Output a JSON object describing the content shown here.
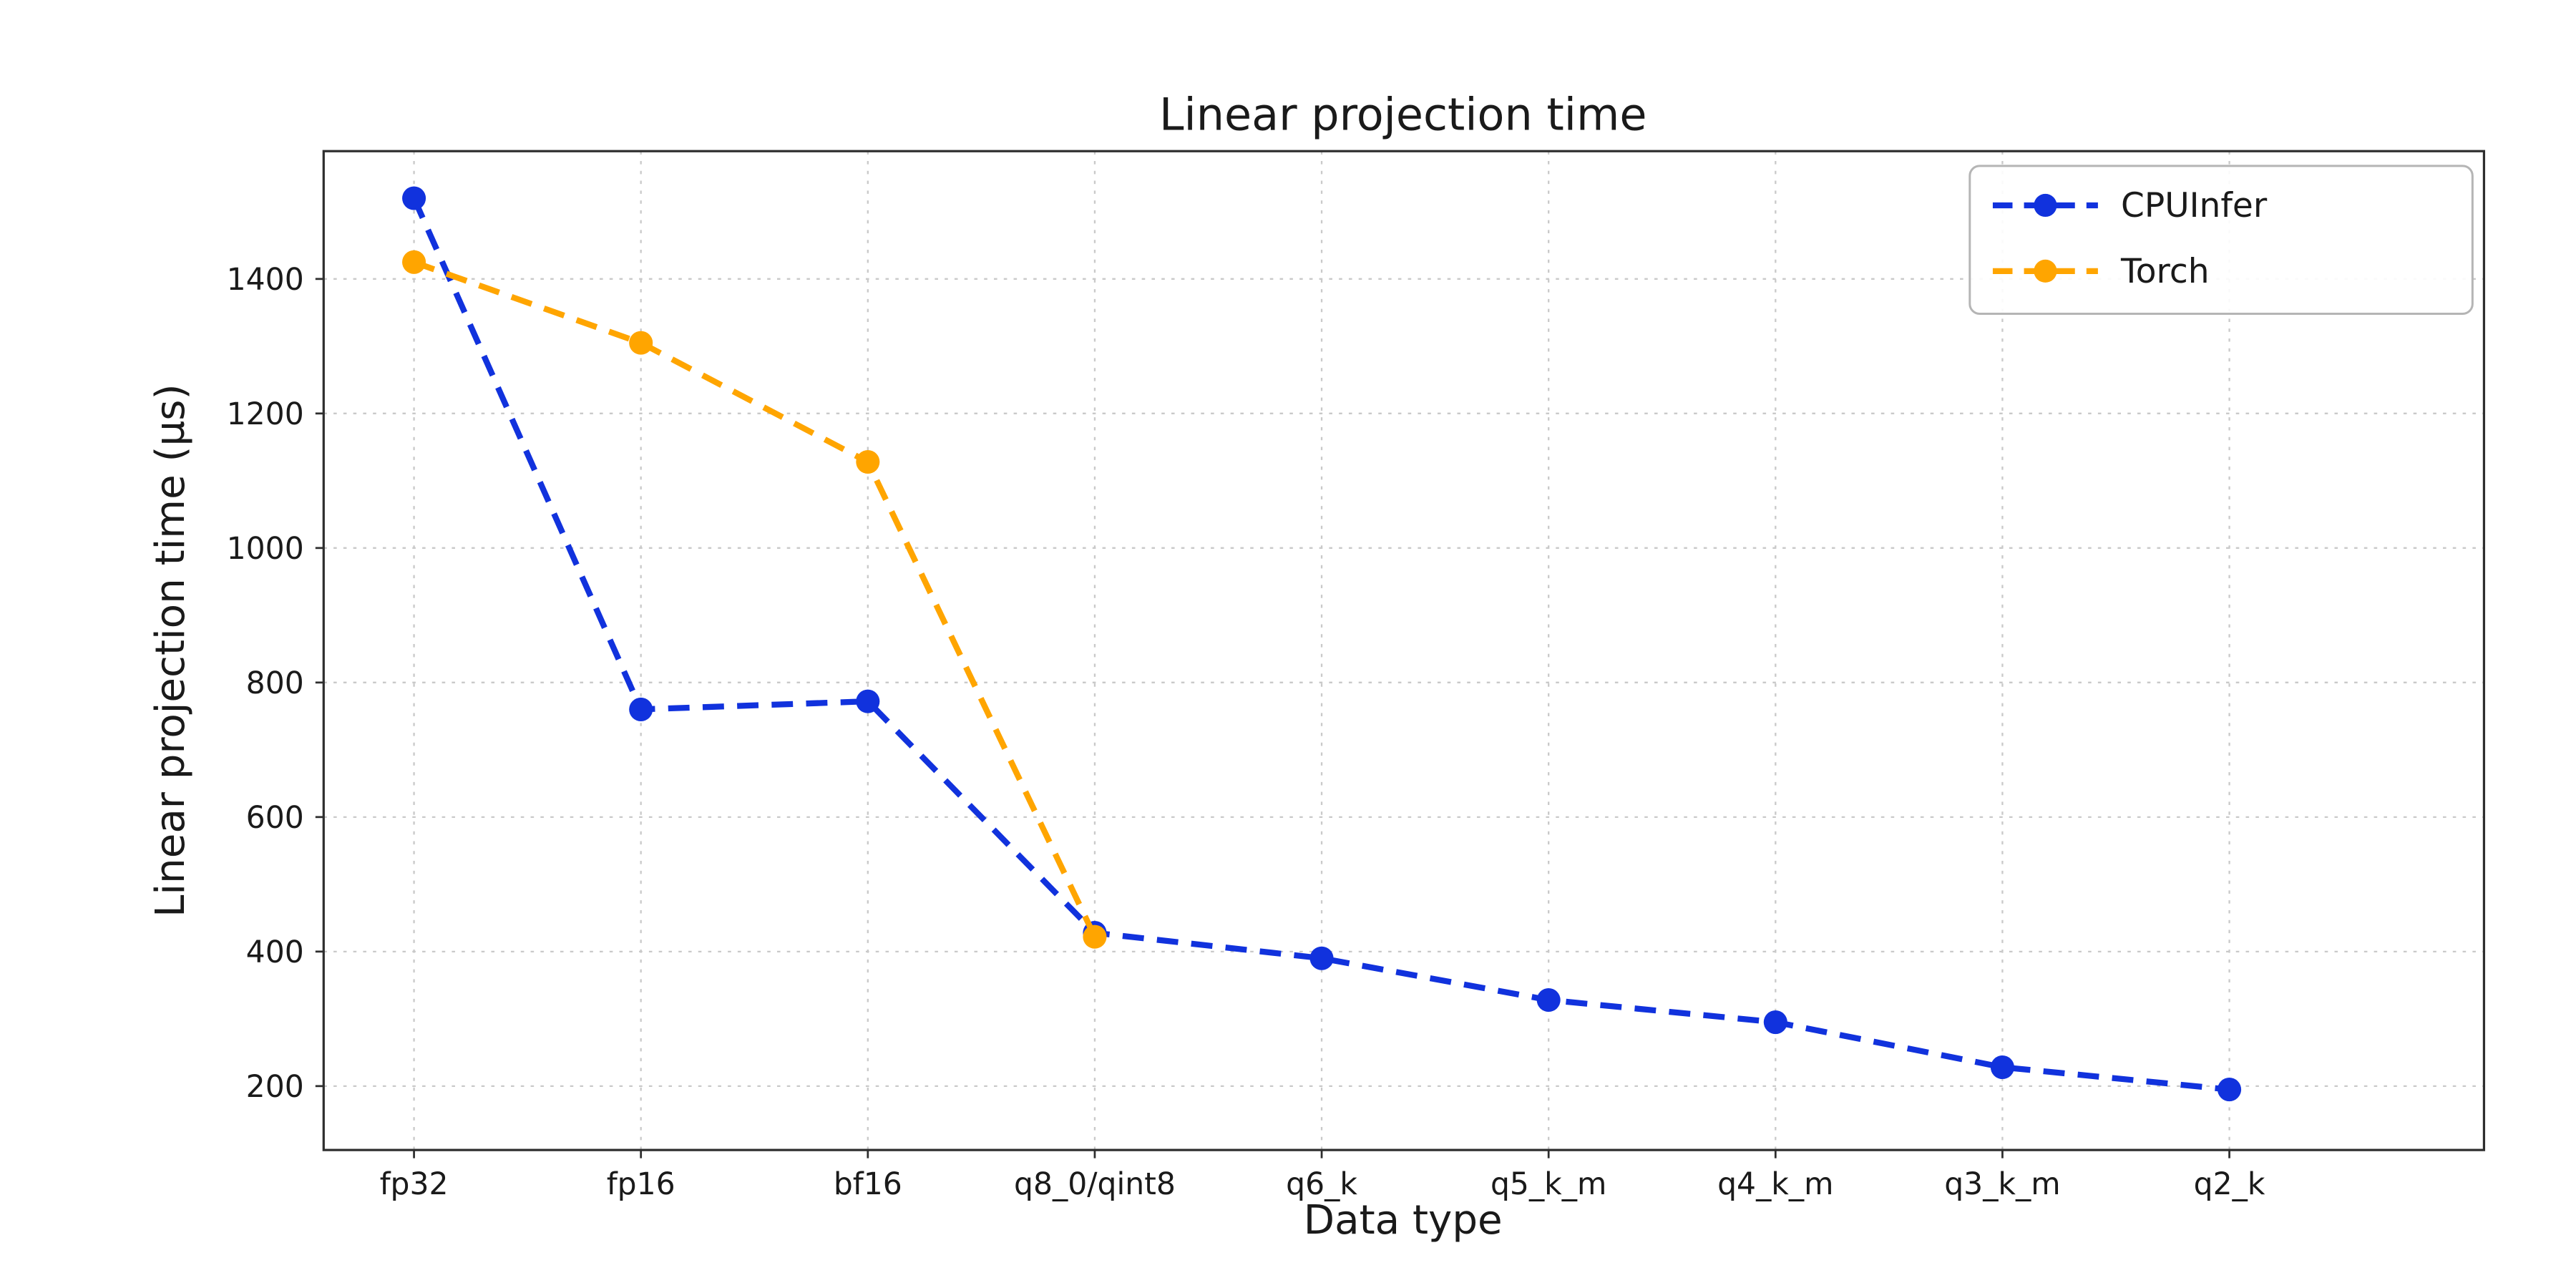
{
  "figure": {
    "background": "#ffffff"
  },
  "chart_data": {
    "type": "line",
    "title": "Linear projection time",
    "xlabel": "Data type",
    "ylabel": "Linear projection time (µs)",
    "categories": [
      "fp32",
      "fp16",
      "bf16",
      "q8_0/qint8",
      "q6_k",
      "q5_k_m",
      "q4_k_m",
      "q3_k_m",
      "q2_k"
    ],
    "series": [
      {
        "name": "CPUInfer",
        "color": "#1132dd",
        "linestyle": "--",
        "marker": "o",
        "values": [
          1520,
          760,
          772,
          428,
          390,
          328,
          295,
          228,
          195
        ]
      },
      {
        "name": "Torch",
        "color": "#ffa500",
        "linestyle": "--",
        "marker": "o",
        "values": [
          1425,
          1305,
          1128,
          422,
          null,
          null,
          null,
          null,
          null
        ]
      }
    ],
    "yticks": [
      200,
      400,
      600,
      800,
      1000,
      1200,
      1400
    ],
    "ylim": [
      105,
      1590
    ],
    "grid": true,
    "legend_position": "upper right"
  }
}
